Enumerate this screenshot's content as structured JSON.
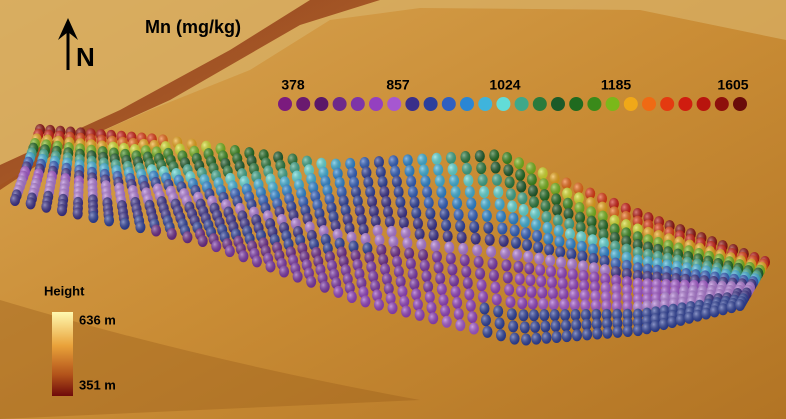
{
  "title": "Mn (mg/kg)",
  "north": "N",
  "mn_scale": {
    "labels": [
      "378",
      "857",
      "1024",
      "1185",
      "1605"
    ]
  },
  "height_legend": {
    "title": "Height",
    "max_label": "636 m",
    "min_label": "351 m"
  }
}
